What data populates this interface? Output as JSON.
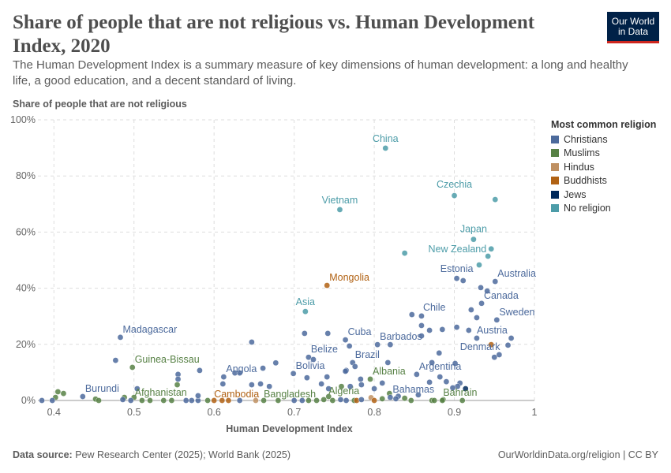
{
  "header": {
    "title": "Share of people that are not religious vs. Human Development Index, 2020",
    "subtitle": "The Human Development Index is a summary measure of key dimensions of human development: a long and healthy life, a good education, and a decent standard of living.",
    "logo_line1": "Our World",
    "logo_line2": "in Data"
  },
  "footer": {
    "source_label": "Data source:",
    "source_text": " Pew Research Center (2025); World Bank (2025)",
    "credit": "OurWorldinData.org/religion | CC BY"
  },
  "legend": {
    "title": "Most common religion",
    "items": [
      {
        "key": "C",
        "label": "Christians",
        "color": "#4c6a9c"
      },
      {
        "key": "M",
        "label": "Muslims",
        "color": "#578145"
      },
      {
        "key": "H",
        "label": "Hindus",
        "color": "#bf9061"
      },
      {
        "key": "B",
        "label": "Buddhists",
        "color": "#b16214"
      },
      {
        "key": "J",
        "label": "Jews",
        "color": "#00295b"
      },
      {
        "key": "N",
        "label": "No religion",
        "color": "#4c9ca8"
      }
    ]
  },
  "chart_data": {
    "type": "scatter",
    "title": "Share of people that are not religious vs. Human Development Index, 2020",
    "xlabel": "Human Development Index",
    "ylabel": "Share of people that are not religious",
    "xlim": [
      0.38,
      1.0
    ],
    "ylim": [
      0,
      100
    ],
    "x_ticks": [
      "0.4",
      "0.5",
      "0.6",
      "0.7",
      "0.8",
      "0.9",
      "1"
    ],
    "x_tick_values": [
      0.4,
      0.5,
      0.6,
      0.7,
      0.8,
      0.9,
      1.0
    ],
    "y_ticks": [
      "0%",
      "20%",
      "40%",
      "60%",
      "80%",
      "100%"
    ],
    "y_tick_values": [
      0,
      20,
      40,
      60,
      80,
      100
    ],
    "grid": true,
    "legend_placement": "right",
    "point_fields": [
      "hdi",
      "share_not_religious_pct",
      "religion",
      "label"
    ],
    "points": [
      [
        0.814,
        89.9,
        "N",
        "China"
      ],
      [
        0.9,
        73.0,
        "N",
        "Czechia"
      ],
      [
        0.951,
        71.6,
        "N",
        ""
      ],
      [
        0.757,
        68.0,
        "N",
        "Vietnam"
      ],
      [
        0.924,
        57.4,
        "N",
        "Japan"
      ],
      [
        0.946,
        54.0,
        "N",
        "New Zealand"
      ],
      [
        0.942,
        51.4,
        "N",
        ""
      ],
      [
        0.838,
        52.5,
        "N",
        ""
      ],
      [
        0.931,
        48.3,
        "N",
        ""
      ],
      [
        0.741,
        41.0,
        "B",
        "Mongolia"
      ],
      [
        0.714,
        31.7,
        "N",
        "Asia"
      ],
      [
        0.903,
        43.5,
        "C",
        "Estonia"
      ],
      [
        0.911,
        42.7,
        "C",
        ""
      ],
      [
        0.951,
        42.4,
        "C",
        "Australia"
      ],
      [
        0.933,
        40.2,
        "C",
        ""
      ],
      [
        0.941,
        39.0,
        "C",
        ""
      ],
      [
        0.934,
        34.6,
        "C",
        "Canada"
      ],
      [
        0.921,
        32.3,
        "C",
        ""
      ],
      [
        0.847,
        30.6,
        "C",
        ""
      ],
      [
        0.859,
        30.1,
        "C",
        "Chile"
      ],
      [
        0.928,
        29.5,
        "C",
        ""
      ],
      [
        0.953,
        28.7,
        "C",
        "Sweden"
      ],
      [
        0.859,
        26.7,
        "C",
        ""
      ],
      [
        0.903,
        26.1,
        "C",
        ""
      ],
      [
        0.885,
        25.3,
        "C",
        ""
      ],
      [
        0.869,
        25.0,
        "C",
        ""
      ],
      [
        0.918,
        25.0,
        "C",
        ""
      ],
      [
        0.742,
        23.9,
        "C",
        ""
      ],
      [
        0.713,
        23.9,
        "C",
        ""
      ],
      [
        0.859,
        23.0,
        "C",
        ""
      ],
      [
        0.483,
        22.5,
        "C",
        "Madagascar"
      ],
      [
        0.928,
        22.2,
        "C",
        "Austria"
      ],
      [
        0.971,
        22.2,
        "C",
        ""
      ],
      [
        0.764,
        21.6,
        "C",
        "Cuba"
      ],
      [
        0.647,
        20.8,
        "C",
        ""
      ],
      [
        0.804,
        19.9,
        "C",
        "Barbados"
      ],
      [
        0.82,
        19.9,
        "C",
        ""
      ],
      [
        0.946,
        19.9,
        "B",
        ""
      ],
      [
        0.967,
        19.7,
        "C",
        "Denmark"
      ],
      [
        0.769,
        19.4,
        "C",
        ""
      ],
      [
        0.881,
        16.9,
        "C",
        ""
      ],
      [
        0.956,
        16.3,
        "C",
        ""
      ],
      [
        0.95,
        15.4,
        "C",
        ""
      ],
      [
        0.718,
        15.4,
        "C",
        "Belize"
      ],
      [
        0.724,
        14.6,
        "C",
        ""
      ],
      [
        0.477,
        14.3,
        "C",
        ""
      ],
      [
        0.773,
        13.5,
        "C",
        "Brazil"
      ],
      [
        0.872,
        13.5,
        "C",
        ""
      ],
      [
        0.817,
        13.5,
        "C",
        ""
      ],
      [
        0.677,
        13.4,
        "C",
        ""
      ],
      [
        0.901,
        13.2,
        "C",
        ""
      ],
      [
        0.776,
        12.1,
        "C",
        ""
      ],
      [
        0.498,
        11.8,
        "M",
        "Guinea-Bissau"
      ],
      [
        0.661,
        11.5,
        "C",
        ""
      ],
      [
        0.582,
        10.7,
        "C",
        ""
      ],
      [
        0.765,
        10.7,
        "C",
        ""
      ],
      [
        0.764,
        10.4,
        "C",
        ""
      ],
      [
        0.626,
        9.8,
        "C",
        ""
      ],
      [
        0.632,
        9.8,
        "C",
        ""
      ],
      [
        0.699,
        9.6,
        "C",
        "Bolivia"
      ],
      [
        0.555,
        9.3,
        "C",
        ""
      ],
      [
        0.853,
        9.3,
        "C",
        "Argentina"
      ],
      [
        0.612,
        8.4,
        "C",
        "Angola"
      ],
      [
        0.741,
        8.4,
        "C",
        ""
      ],
      [
        0.882,
        8.4,
        "C",
        ""
      ],
      [
        0.716,
        8.1,
        "C",
        ""
      ],
      [
        0.555,
        7.6,
        "C",
        ""
      ],
      [
        0.795,
        7.6,
        "M",
        "Albania"
      ],
      [
        0.783,
        7.6,
        "C",
        ""
      ],
      [
        0.89,
        6.7,
        "C",
        ""
      ],
      [
        0.869,
        6.5,
        "C",
        ""
      ],
      [
        0.81,
        6.2,
        "C",
        ""
      ],
      [
        0.907,
        6.2,
        "C",
        ""
      ],
      [
        0.611,
        5.9,
        "C",
        ""
      ],
      [
        0.658,
        5.9,
        "C",
        ""
      ],
      [
        0.734,
        5.9,
        "C",
        ""
      ],
      [
        0.554,
        5.6,
        "M",
        ""
      ],
      [
        0.647,
        5.6,
        "C",
        ""
      ],
      [
        0.784,
        5.6,
        "C",
        ""
      ],
      [
        0.669,
        5.0,
        "C",
        ""
      ],
      [
        0.759,
        5.0,
        "M",
        ""
      ],
      [
        0.77,
        5.0,
        "C",
        ""
      ],
      [
        0.904,
        5.0,
        "C",
        ""
      ],
      [
        0.504,
        4.2,
        "C",
        ""
      ],
      [
        0.743,
        4.2,
        "C",
        ""
      ],
      [
        0.8,
        4.2,
        "C",
        ""
      ],
      [
        0.914,
        4.2,
        "J",
        ""
      ],
      [
        0.898,
        4.5,
        "C",
        ""
      ],
      [
        0.405,
        3.1,
        "M",
        ""
      ],
      [
        0.412,
        2.5,
        "M",
        ""
      ],
      [
        0.855,
        2.0,
        "C",
        ""
      ],
      [
        0.819,
        2.5,
        "M",
        ""
      ],
      [
        0.743,
        1.4,
        "M",
        "Algeria"
      ],
      [
        0.436,
        1.4,
        "C",
        "Burundi"
      ],
      [
        0.402,
        1.1,
        "M",
        ""
      ],
      [
        0.488,
        1.1,
        "M",
        ""
      ],
      [
        0.5,
        1.1,
        "M",
        "Afghanistan"
      ],
      [
        0.82,
        1.1,
        "C",
        "Bahamas"
      ],
      [
        0.83,
        1.5,
        "C",
        ""
      ],
      [
        0.796,
        1.0,
        "H",
        ""
      ],
      [
        0.838,
        0.8,
        "M",
        ""
      ],
      [
        0.827,
        0.6,
        "C",
        ""
      ],
      [
        0.886,
        0.3,
        "M",
        "Bahrain"
      ],
      [
        0.385,
        0.0,
        "C",
        ""
      ],
      [
        0.398,
        0.0,
        "C",
        ""
      ],
      [
        0.452,
        0.5,
        "M",
        ""
      ],
      [
        0.456,
        0.0,
        "M",
        ""
      ],
      [
        0.486,
        0.3,
        "C",
        ""
      ],
      [
        0.496,
        0.0,
        "C",
        ""
      ],
      [
        0.51,
        0.0,
        "M",
        ""
      ],
      [
        0.52,
        0.0,
        "M",
        ""
      ],
      [
        0.537,
        0.0,
        "M",
        ""
      ],
      [
        0.547,
        0.0,
        "M",
        ""
      ],
      [
        0.565,
        0.0,
        "C",
        ""
      ],
      [
        0.572,
        0.0,
        "C",
        ""
      ],
      [
        0.58,
        0.0,
        "C",
        ""
      ],
      [
        0.58,
        1.7,
        "C",
        ""
      ],
      [
        0.592,
        0.0,
        "M",
        ""
      ],
      [
        0.6,
        0.0,
        "B",
        "Cambodia"
      ],
      [
        0.61,
        0.0,
        "B",
        ""
      ],
      [
        0.618,
        0.0,
        "B",
        ""
      ],
      [
        0.632,
        0.0,
        "C",
        ""
      ],
      [
        0.652,
        0.0,
        "H",
        ""
      ],
      [
        0.662,
        0.0,
        "M",
        "Bangladesh"
      ],
      [
        0.68,
        0.0,
        "M",
        ""
      ],
      [
        0.7,
        0.0,
        "C",
        ""
      ],
      [
        0.71,
        0.0,
        "C",
        ""
      ],
      [
        0.718,
        0.0,
        "M",
        ""
      ],
      [
        0.728,
        0.0,
        "M",
        ""
      ],
      [
        0.737,
        0.3,
        "M",
        ""
      ],
      [
        0.748,
        0.0,
        "M",
        ""
      ],
      [
        0.758,
        0.3,
        "C",
        ""
      ],
      [
        0.765,
        0.0,
        "C",
        ""
      ],
      [
        0.775,
        0.0,
        "M",
        ""
      ],
      [
        0.778,
        0.0,
        "B",
        ""
      ],
      [
        0.784,
        0.3,
        "C",
        ""
      ],
      [
        0.8,
        0.0,
        "B",
        ""
      ],
      [
        0.81,
        0.6,
        "M",
        ""
      ],
      [
        0.846,
        0.0,
        "M",
        ""
      ],
      [
        0.872,
        0.0,
        "M",
        ""
      ],
      [
        0.875,
        0.0,
        "M",
        ""
      ],
      [
        0.885,
        0.0,
        "M",
        ""
      ],
      [
        0.91,
        0.0,
        "M",
        ""
      ]
    ]
  }
}
